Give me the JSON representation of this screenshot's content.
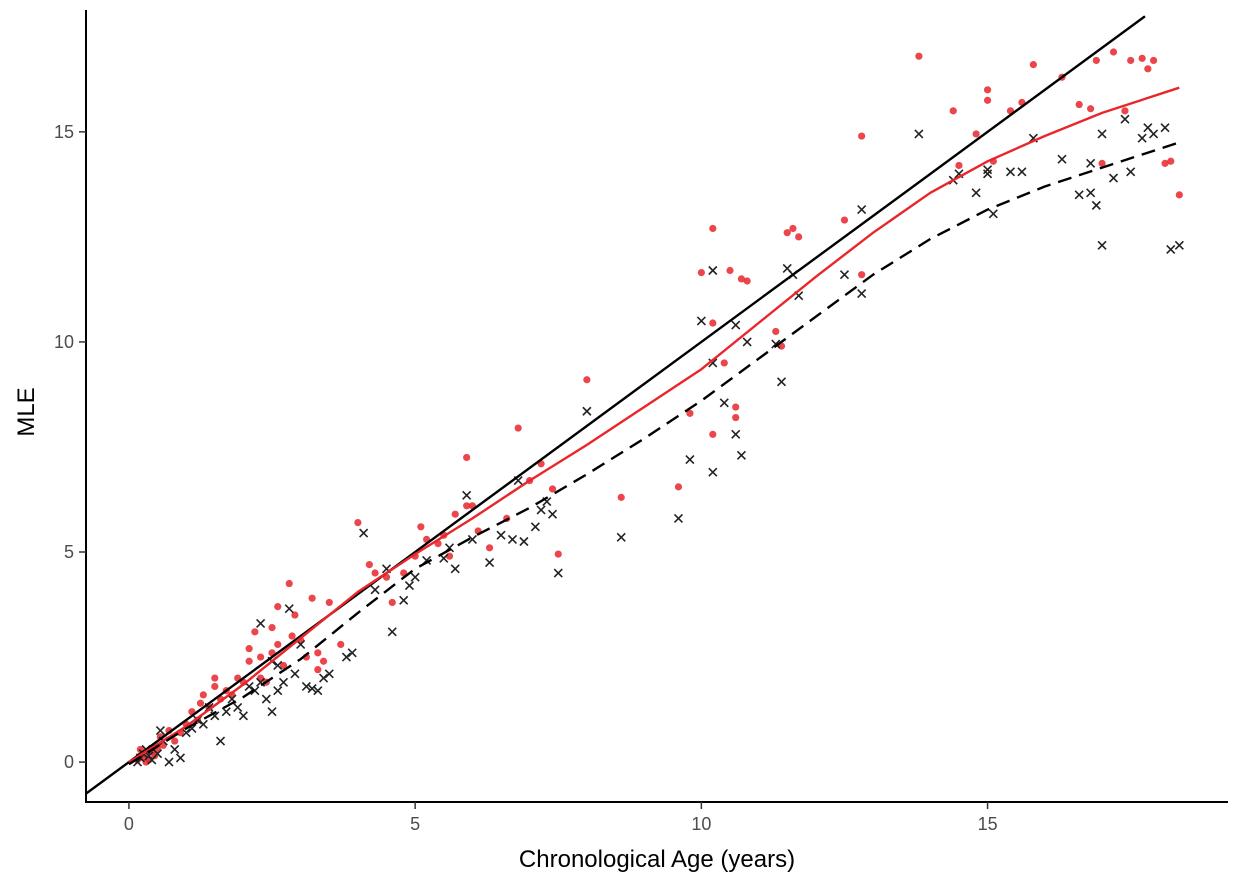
{
  "chart_data": {
    "type": "scatter",
    "xlabel": "Chronological Age (years)",
    "ylabel": "MLE",
    "xlim": [
      -0.75,
      19.2
    ],
    "ylim": [
      -0.95,
      17.9
    ],
    "x_ticks": [
      0,
      5,
      10,
      15
    ],
    "y_ticks": [
      0,
      5,
      10,
      15
    ],
    "grid": false,
    "legend": "none",
    "colors": {
      "red": "#e8262b",
      "black": "#222222",
      "axis": "#000000"
    },
    "series": [
      {
        "marker": "circle",
        "color": "#e8262b",
        "points": [
          [
            0.15,
            0.05
          ],
          [
            0.2,
            0.15
          ],
          [
            0.25,
            0.1
          ],
          [
            0.3,
            0.2
          ],
          [
            0.35,
            0.05
          ],
          [
            0.4,
            0.25
          ],
          [
            0.2,
            0.3
          ],
          [
            0.3,
            0.0
          ],
          [
            0.45,
            0.15
          ],
          [
            0.5,
            0.3
          ],
          [
            0.55,
            0.6
          ],
          [
            0.6,
            0.4
          ],
          [
            0.7,
            0.75
          ],
          [
            0.8,
            0.5
          ],
          [
            0.9,
            0.7
          ],
          [
            1.0,
            0.9
          ],
          [
            1.1,
            1.2
          ],
          [
            1.2,
            1.0
          ],
          [
            1.25,
            1.4
          ],
          [
            1.3,
            1.6
          ],
          [
            1.4,
            1.3
          ],
          [
            1.5,
            1.8
          ],
          [
            1.5,
            2.0
          ],
          [
            1.6,
            1.5
          ],
          [
            1.7,
            1.7
          ],
          [
            1.8,
            1.6
          ],
          [
            1.9,
            2.0
          ],
          [
            2.0,
            1.9
          ],
          [
            2.1,
            2.4
          ],
          [
            2.1,
            2.7
          ],
          [
            2.2,
            3.1
          ],
          [
            2.3,
            2.0
          ],
          [
            2.3,
            2.5
          ],
          [
            2.4,
            1.9
          ],
          [
            2.5,
            3.2
          ],
          [
            2.5,
            2.6
          ],
          [
            2.6,
            3.7
          ],
          [
            2.6,
            2.8
          ],
          [
            2.7,
            2.3
          ],
          [
            2.8,
            4.25
          ],
          [
            2.85,
            3.0
          ],
          [
            2.9,
            3.5
          ],
          [
            3.0,
            2.9
          ],
          [
            3.1,
            2.5
          ],
          [
            3.2,
            3.9
          ],
          [
            3.3,
            2.2
          ],
          [
            3.3,
            2.6
          ],
          [
            3.4,
            2.4
          ],
          [
            3.5,
            3.8
          ],
          [
            3.7,
            2.8
          ],
          [
            4.0,
            5.7
          ],
          [
            4.2,
            4.7
          ],
          [
            4.3,
            4.5
          ],
          [
            4.5,
            4.4
          ],
          [
            4.6,
            3.8
          ],
          [
            4.8,
            4.5
          ],
          [
            5.0,
            4.9
          ],
          [
            5.1,
            5.6
          ],
          [
            5.2,
            5.3
          ],
          [
            5.4,
            5.2
          ],
          [
            5.5,
            5.4
          ],
          [
            5.6,
            4.9
          ],
          [
            5.7,
            5.9
          ],
          [
            5.9,
            7.25
          ],
          [
            5.9,
            6.1
          ],
          [
            6.0,
            6.1
          ],
          [
            6.1,
            5.5
          ],
          [
            6.3,
            5.1
          ],
          [
            6.6,
            5.8
          ],
          [
            6.8,
            7.95
          ],
          [
            7.0,
            6.7
          ],
          [
            7.2,
            7.1
          ],
          [
            7.4,
            6.5
          ],
          [
            7.5,
            4.95
          ],
          [
            8.0,
            9.1
          ],
          [
            8.6,
            6.3
          ],
          [
            9.6,
            6.55
          ],
          [
            9.8,
            8.3
          ],
          [
            10.0,
            11.65
          ],
          [
            10.2,
            12.7
          ],
          [
            10.2,
            10.45
          ],
          [
            10.2,
            7.8
          ],
          [
            10.4,
            9.5
          ],
          [
            10.5,
            11.7
          ],
          [
            10.6,
            8.45
          ],
          [
            10.6,
            8.2
          ],
          [
            10.7,
            11.5
          ],
          [
            10.8,
            11.45
          ],
          [
            11.3,
            10.25
          ],
          [
            11.4,
            9.9
          ],
          [
            11.5,
            12.6
          ],
          [
            11.6,
            12.7
          ],
          [
            11.7,
            12.5
          ],
          [
            12.5,
            12.9
          ],
          [
            12.8,
            11.6
          ],
          [
            12.8,
            14.9
          ],
          [
            13.8,
            16.8
          ],
          [
            14.4,
            15.5
          ],
          [
            14.5,
            14.2
          ],
          [
            14.8,
            14.95
          ],
          [
            15.0,
            15.75
          ],
          [
            15.0,
            16.0
          ],
          [
            15.1,
            14.3
          ],
          [
            15.4,
            15.5
          ],
          [
            15.6,
            15.7
          ],
          [
            15.8,
            16.6
          ],
          [
            16.3,
            16.3
          ],
          [
            16.6,
            15.65
          ],
          [
            16.8,
            15.55
          ],
          [
            16.9,
            16.7
          ],
          [
            17.0,
            14.25
          ],
          [
            17.2,
            16.9
          ],
          [
            17.4,
            15.5
          ],
          [
            17.5,
            16.7
          ],
          [
            17.7,
            16.75
          ],
          [
            17.8,
            16.5
          ],
          [
            17.9,
            16.7
          ],
          [
            18.1,
            14.25
          ],
          [
            18.2,
            14.3
          ],
          [
            18.35,
            13.5
          ]
        ]
      },
      {
        "marker": "x",
        "color": "#222222",
        "points": [
          [
            0.15,
            0.0
          ],
          [
            0.2,
            0.1
          ],
          [
            0.25,
            0.2
          ],
          [
            0.3,
            0.3
          ],
          [
            0.35,
            0.15
          ],
          [
            0.4,
            0.05
          ],
          [
            0.5,
            0.2
          ],
          [
            0.55,
            0.75
          ],
          [
            0.6,
            0.5
          ],
          [
            0.7,
            0.0
          ],
          [
            0.8,
            0.3
          ],
          [
            0.9,
            0.1
          ],
          [
            1.0,
            0.7
          ],
          [
            1.1,
            0.8
          ],
          [
            1.2,
            1.0
          ],
          [
            1.3,
            0.9
          ],
          [
            1.4,
            1.3
          ],
          [
            1.5,
            1.1
          ],
          [
            1.6,
            0.5
          ],
          [
            1.7,
            1.2
          ],
          [
            1.8,
            1.5
          ],
          [
            1.9,
            1.3
          ],
          [
            2.0,
            1.1
          ],
          [
            2.1,
            1.8
          ],
          [
            2.2,
            1.7
          ],
          [
            2.3,
            1.9
          ],
          [
            2.3,
            3.3
          ],
          [
            2.4,
            1.5
          ],
          [
            2.5,
            2.4
          ],
          [
            2.5,
            1.2
          ],
          [
            2.6,
            1.7
          ],
          [
            2.6,
            2.3
          ],
          [
            2.7,
            1.9
          ],
          [
            2.8,
            3.65
          ],
          [
            2.9,
            2.1
          ],
          [
            3.0,
            2.8
          ],
          [
            3.1,
            1.8
          ],
          [
            3.2,
            1.75
          ],
          [
            3.3,
            1.7
          ],
          [
            3.4,
            2.0
          ],
          [
            3.5,
            2.1
          ],
          [
            3.8,
            2.5
          ],
          [
            3.9,
            2.6
          ],
          [
            4.1,
            5.45
          ],
          [
            4.3,
            4.1
          ],
          [
            4.5,
            4.6
          ],
          [
            4.6,
            3.1
          ],
          [
            4.8,
            3.85
          ],
          [
            4.9,
            4.2
          ],
          [
            5.0,
            4.4
          ],
          [
            5.2,
            4.8
          ],
          [
            5.5,
            4.85
          ],
          [
            5.6,
            5.1
          ],
          [
            5.7,
            4.6
          ],
          [
            5.9,
            6.35
          ],
          [
            6.0,
            5.3
          ],
          [
            6.3,
            4.75
          ],
          [
            6.5,
            5.4
          ],
          [
            6.7,
            5.3
          ],
          [
            6.8,
            6.7
          ],
          [
            6.9,
            5.25
          ],
          [
            7.1,
            5.6
          ],
          [
            7.2,
            6.0
          ],
          [
            7.3,
            6.2
          ],
          [
            7.4,
            5.9
          ],
          [
            7.5,
            4.5
          ],
          [
            8.0,
            8.35
          ],
          [
            8.6,
            5.35
          ],
          [
            9.6,
            5.8
          ],
          [
            9.8,
            7.2
          ],
          [
            10.0,
            10.5
          ],
          [
            10.2,
            11.7
          ],
          [
            10.2,
            9.5
          ],
          [
            10.2,
            6.9
          ],
          [
            10.4,
            8.55
          ],
          [
            10.6,
            10.4
          ],
          [
            10.6,
            7.8
          ],
          [
            10.7,
            7.3
          ],
          [
            10.8,
            10.0
          ],
          [
            11.3,
            9.95
          ],
          [
            11.4,
            9.05
          ],
          [
            11.5,
            11.75
          ],
          [
            11.6,
            11.6
          ],
          [
            11.7,
            11.1
          ],
          [
            12.5,
            11.6
          ],
          [
            12.8,
            13.15
          ],
          [
            12.8,
            11.15
          ],
          [
            13.8,
            14.95
          ],
          [
            14.4,
            13.85
          ],
          [
            14.5,
            14.0
          ],
          [
            14.8,
            13.55
          ],
          [
            15.0,
            14.1
          ],
          [
            15.0,
            14.0
          ],
          [
            15.1,
            13.05
          ],
          [
            15.4,
            14.05
          ],
          [
            15.6,
            14.05
          ],
          [
            15.8,
            14.85
          ],
          [
            16.3,
            14.35
          ],
          [
            16.6,
            13.5
          ],
          [
            16.8,
            14.25
          ],
          [
            16.8,
            13.55
          ],
          [
            16.9,
            13.25
          ],
          [
            17.0,
            14.95
          ],
          [
            17.0,
            12.3
          ],
          [
            17.2,
            13.9
          ],
          [
            17.4,
            15.3
          ],
          [
            17.5,
            14.05
          ],
          [
            17.7,
            14.85
          ],
          [
            17.8,
            15.1
          ],
          [
            17.9,
            14.95
          ],
          [
            18.1,
            15.1
          ],
          [
            18.2,
            12.2
          ],
          [
            18.35,
            12.3
          ]
        ]
      }
    ],
    "lines": [
      {
        "style": "solid",
        "color": "#000000",
        "points": [
          [
            -0.75,
            -0.75
          ],
          [
            17.75,
            17.75
          ]
        ]
      },
      {
        "style": "solid",
        "color": "#e8262b",
        "points": [
          [
            0,
            0
          ],
          [
            1,
            0.85
          ],
          [
            2,
            1.85
          ],
          [
            3,
            2.95
          ],
          [
            4,
            4.05
          ],
          [
            5,
            4.95
          ],
          [
            6,
            5.8
          ],
          [
            7,
            6.7
          ],
          [
            8,
            7.55
          ],
          [
            9,
            8.45
          ],
          [
            10,
            9.35
          ],
          [
            11,
            10.45
          ],
          [
            12,
            11.55
          ],
          [
            13,
            12.6
          ],
          [
            14,
            13.55
          ],
          [
            15,
            14.3
          ],
          [
            16,
            14.9
          ],
          [
            17,
            15.45
          ],
          [
            18.35,
            16.05
          ]
        ]
      },
      {
        "style": "dashed",
        "color": "#000000",
        "points": [
          [
            0,
            -0.05
          ],
          [
            1,
            0.8
          ],
          [
            2,
            1.55
          ],
          [
            3,
            2.45
          ],
          [
            4,
            3.55
          ],
          [
            5,
            4.6
          ],
          [
            6,
            5.35
          ],
          [
            7,
            6.05
          ],
          [
            8,
            6.85
          ],
          [
            9,
            7.7
          ],
          [
            10,
            8.6
          ],
          [
            11,
            9.6
          ],
          [
            12,
            10.6
          ],
          [
            13,
            11.6
          ],
          [
            14,
            12.45
          ],
          [
            15,
            13.15
          ],
          [
            16,
            13.7
          ],
          [
            17,
            14.15
          ],
          [
            18.35,
            14.75
          ]
        ]
      }
    ]
  }
}
